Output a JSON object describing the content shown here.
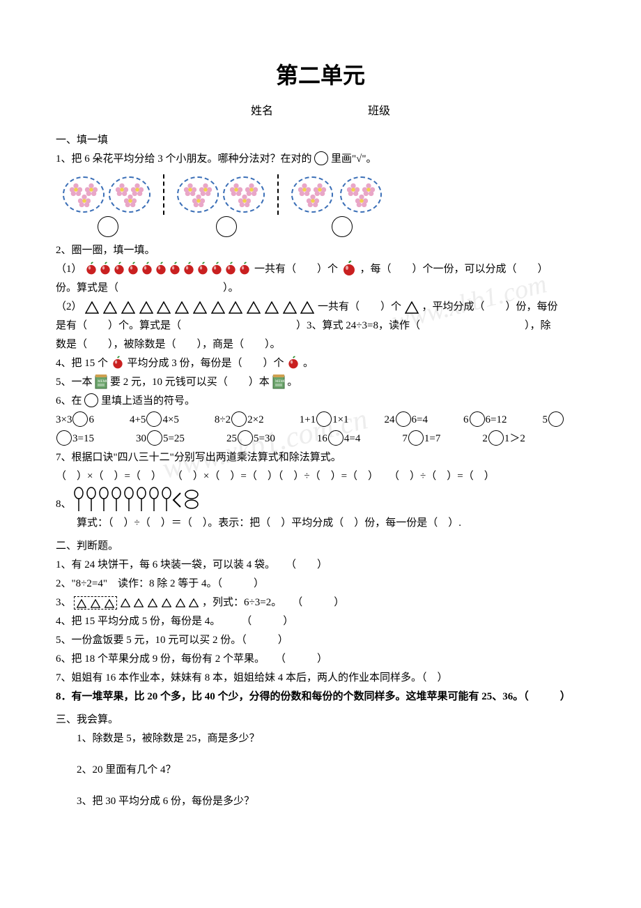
{
  "title": "第二单元",
  "subhead_name_label": "姓名",
  "subhead_class_label": "班级",
  "sections": {
    "s1_head": "一、填一填",
    "q1": "1、把 6 朵花平均分给 3 个小朋友。哪种分法对？在对的",
    "q1_tail": "里画\"√\"。",
    "q2": "2、圈一圈，填一填。",
    "q2_1a": "（1）",
    "q2_1b": "一共有（　　）个",
    "q2_1c": "，每（　　）个一份，可以分成（　　）",
    "q2_1d": "份。算式是（　　　　　　　　　　）。",
    "q2_2a": "（2）",
    "q2_2b": "一共有（　　）个",
    "q2_2c": "，平均分成（　　）份，每份",
    "q2_2d": "是有（　　）个。算式是（　　　　　　　　　　　）3、算式 24÷3=8，读作（　　　　　　　　　　），除",
    "q2_2e": "数是（　　），被除数是（　　），商是（　　）。",
    "q4a": "4、把 15 个",
    "q4b": "平均分成 3 份，每份是（　　）个",
    "q4c": "。",
    "q5a": "5、一本",
    "q5b": "要 2 元，10 元钱可以买（　　）本",
    "q5c": "。",
    "q6a": "6、在",
    "q6b": "里填上适当的符号。",
    "q7": "7、根据口诀\"四八三十二\"分别写出两道乘法算式和除法算式。",
    "q7_eq": "（　）×（　）=（　）　　（　）×（　）=（　）（　）÷（　）=（　）　　（　）÷（　）=（　）",
    "q8": "8、",
    "q8_line": "算式：（　）÷（　）＝（　）。表示：把（　）平均分成（　）份，每一份是（　）.",
    "s2_head": "二、判断题。",
    "j1": "1、有 24 块饼干，每 6 块装一袋，可以装 4 袋。　　（　　）",
    "j2": "2、\"8÷2=4\"　读作：8 除 2 等于 4。（　　　）",
    "j3a": "3、",
    "j3b": "，列式：6÷3=2。　　（　　　）",
    "j4": "4、把 15 平均分成 5 份，每份是 4。　　　（　　　）",
    "j5": "5、一份盒饭要 5 元，10 元可以买 2 份。（　　　）",
    "j6": "6、把 18 个苹果分成 9 份，每份有 2 个苹果。　　（　　　）",
    "j7": "7、姐姐有 16 本作业本，妹妹有 8 本，姐姐给妹 4 本后，两人的作业本同样多。（　）",
    "j8": "8．有一堆苹果，比 20 个多，比 40 个少，分得的份数和每份的个数同样多。这堆苹果可能有 25、36。（　　　）",
    "s3_head": " 三、我会算。",
    "c1": "　　1、除数是 5，被除数是 25，商是多少？",
    "c2": "　　2、20 里面有几个 4？",
    "c3": "　　3、把 30 平均分成 6 份，每份是多少？"
  },
  "eq_row1": [
    {
      "l": "3×3",
      "r": "6"
    },
    {
      "l": "4+5",
      "r": "4×5"
    },
    {
      "l": "8÷2",
      "r": "2×2"
    },
    {
      "l": "1+1",
      "r": "1×1"
    },
    {
      "l": "24",
      "r": "6=4"
    },
    {
      "l": "6",
      "r": "6=12"
    },
    {
      "l": "5",
      "r": ""
    }
  ],
  "eq_row2": [
    {
      "l": "",
      "r": "3=15"
    },
    {
      "l": "30",
      "r": "5=25"
    },
    {
      "l": "25",
      "r": "5=30"
    },
    {
      "l": "16",
      "r": "4=4"
    },
    {
      "l": "7",
      "r": "1=7"
    },
    {
      "l": "2",
      "r": "1＞2"
    }
  ],
  "apple_count_q2_1": 12,
  "triangle_count_q2_2": 13,
  "balloon_count": 8,
  "colors": {
    "flower_outer": "#e9a6c7",
    "flower_inner": "#f2d24a",
    "flower_dash": "#3b6fb7",
    "apple_fill": "#c92020",
    "apple_shine": "#ffffff",
    "apple_leaf": "#2a8a2a",
    "notebook_fill": "#6aa36a",
    "notebook_top": "#cfa050",
    "watermark": "#ededed"
  },
  "watermarks": {
    "wm1": "www.xkb1.com",
    "wm2": "www.xkb1.com.cn"
  }
}
